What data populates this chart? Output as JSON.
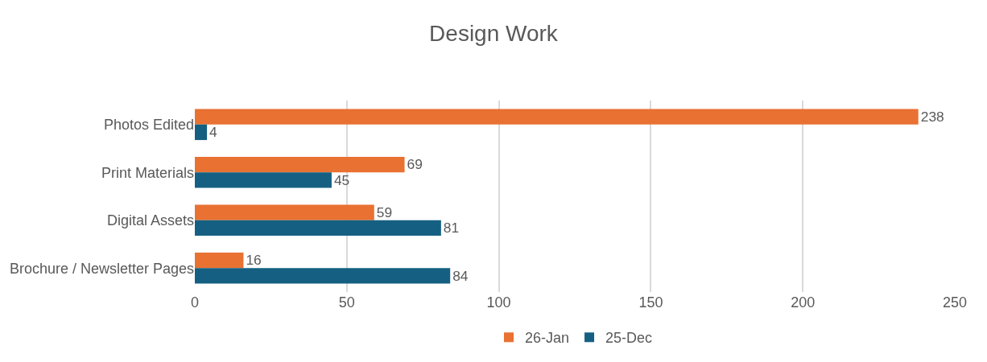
{
  "chart_data": {
    "type": "bar",
    "orientation": "horizontal",
    "title": "Design Work",
    "categories": [
      "Photos Edited",
      "Print Materials",
      "Digital Assets",
      "Brochure / Newsletter Pages"
    ],
    "series": [
      {
        "name": "26-Jan",
        "color": "#e97132",
        "values": [
          238,
          69,
          59,
          16
        ]
      },
      {
        "name": "25-Dec",
        "color": "#156082",
        "values": [
          4,
          45,
          81,
          84
        ]
      }
    ],
    "xlim": [
      0,
      250
    ],
    "xticks": [
      0,
      50,
      100,
      150,
      200,
      250
    ],
    "grid": "x",
    "legend": "bottom",
    "data_labels": true
  }
}
